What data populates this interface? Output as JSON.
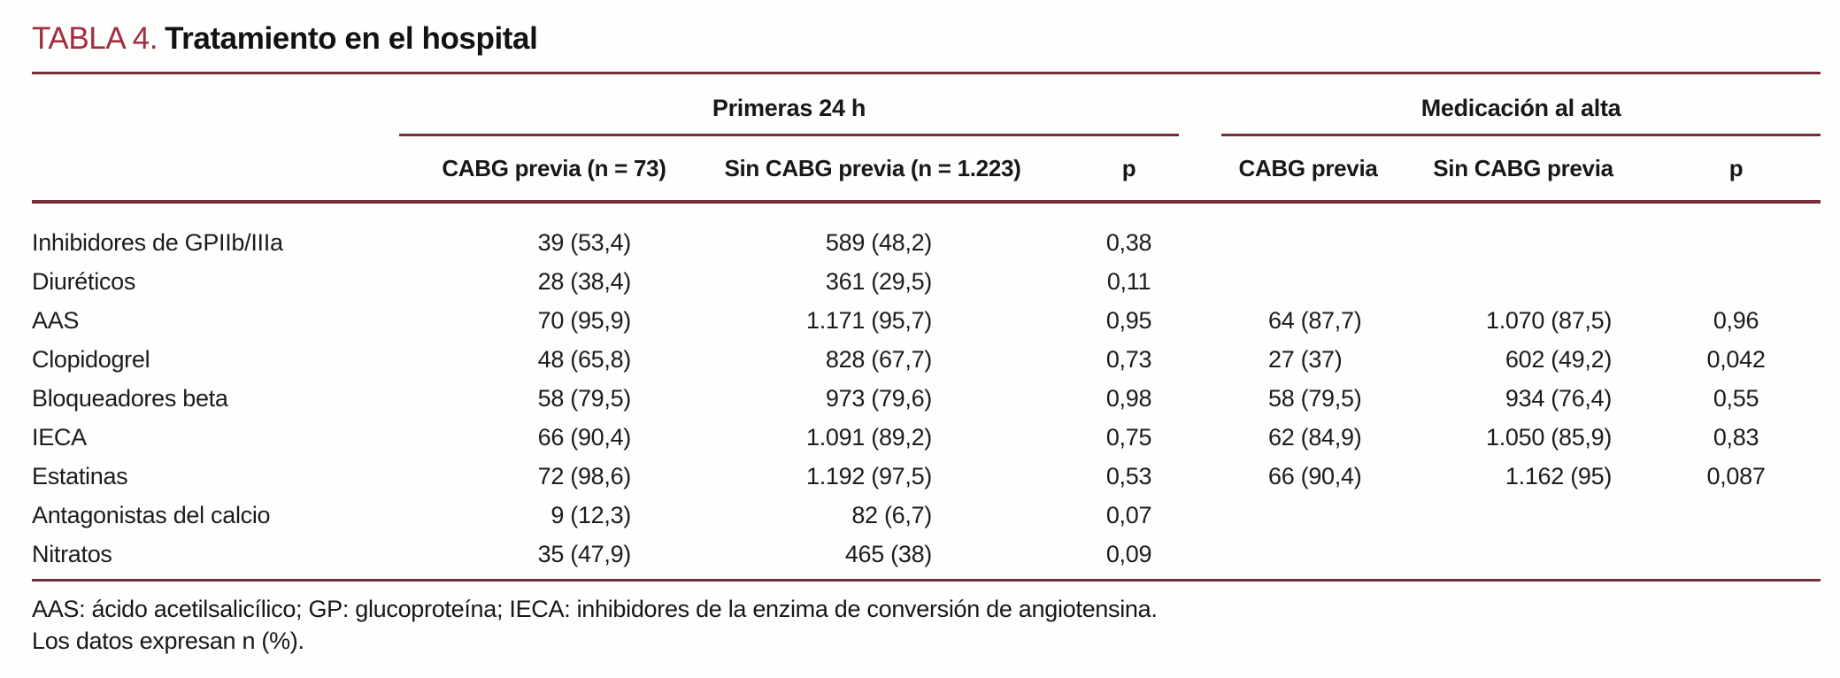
{
  "title": {
    "label": "TABLA 4.",
    "text": "Tratamiento en el hospital"
  },
  "colors": {
    "accent_title": "#a22c40",
    "rule": "#772c3c",
    "text": "#1c1c1c"
  },
  "table": {
    "group_headers": [
      {
        "label": "Primeras 24 h"
      },
      {
        "label": "Medicación al alta"
      }
    ],
    "column_headers": [
      "CABG previa (n = 73)",
      "Sin CABG previa (n = 1.223)",
      "p",
      "CABG previa",
      "Sin CABG previa",
      "p"
    ],
    "rows": [
      {
        "label": "Inhibidores de GPIIb/IIIa",
        "values": [
          "39 (53,4)",
          "589 (48,2)",
          "0,38",
          "",
          "",
          ""
        ]
      },
      {
        "label": "Diuréticos",
        "values": [
          "28 (38,4)",
          "361 (29,5)",
          "0,11",
          "",
          "",
          ""
        ]
      },
      {
        "label": "AAS",
        "values": [
          "70 (95,9)",
          "1.171 (95,7)",
          "0,95",
          "64 (87,7)",
          "1.070 (87,5)",
          "0,96"
        ]
      },
      {
        "label": "Clopidogrel",
        "values": [
          "48 (65,8)",
          "828 (67,7)",
          "0,73",
          "27 (37)",
          "602 (49,2)",
          "0,042"
        ]
      },
      {
        "label": "Bloqueadores beta",
        "values": [
          "58 (79,5)",
          "973 (79,6)",
          "0,98",
          "58 (79,5)",
          "934 (76,4)",
          "0,55"
        ]
      },
      {
        "label": "IECA",
        "values": [
          "66 (90,4)",
          "1.091 (89,2)",
          "0,75",
          "62 (84,9)",
          "1.050 (85,9)",
          "0,83"
        ]
      },
      {
        "label": "Estatinas",
        "values": [
          "72 (98,6)",
          "1.192 (97,5)",
          "0,53",
          "66 (90,4)",
          "1.162 (95)",
          "0,087"
        ]
      },
      {
        "label": "Antagonistas del calcio",
        "values": [
          "9 (12,3)",
          "82 (6,7)",
          "0,07",
          "",
          "",
          ""
        ]
      },
      {
        "label": "Nitratos",
        "values": [
          "35 (47,9)",
          "465 (38)",
          "0,09",
          "",
          "",
          ""
        ]
      }
    ]
  },
  "footnotes": [
    "AAS: ácido acetilsalicílico; GP: glucoproteína; IECA: inhibidores de la enzima de conversión de angiotensina.",
    "Los datos expresan n (%)."
  ]
}
